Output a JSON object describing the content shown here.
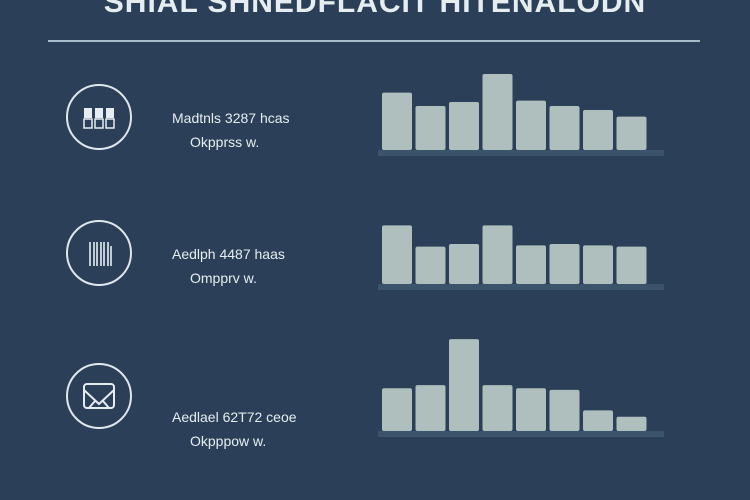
{
  "header": {
    "title": "SHIAL SHNEDFLACIT HITENALODN"
  },
  "rows": [
    {
      "icon": "battery-cells-icon",
      "metric": "Madtnls 3287 hcas",
      "sub": "Okpprss w."
    },
    {
      "icon": "barcode-icon",
      "metric": "Aedlph 4487 haas",
      "sub": "Ompprv w."
    },
    {
      "icon": "inbox-icon",
      "metric": "Aedlael 62T72 ceoe",
      "sub": "Okpppow w."
    }
  ],
  "colors": {
    "background": "#2b4058",
    "bar": "#aebfbe",
    "baseline": "#3b536b",
    "text": "#e6edf1"
  },
  "chart_data": [
    {
      "type": "bar",
      "values": [
        43,
        33,
        36,
        57,
        37,
        33,
        30,
        25
      ],
      "ylim": [
        0,
        60
      ]
    },
    {
      "type": "bar",
      "values": [
        44,
        28,
        30,
        44,
        29,
        30,
        29,
        28
      ],
      "ylim": [
        0,
        60
      ]
    },
    {
      "type": "bar",
      "values": [
        27,
        29,
        58,
        29,
        27,
        26,
        13,
        9
      ],
      "ylim": [
        0,
        60
      ]
    }
  ]
}
